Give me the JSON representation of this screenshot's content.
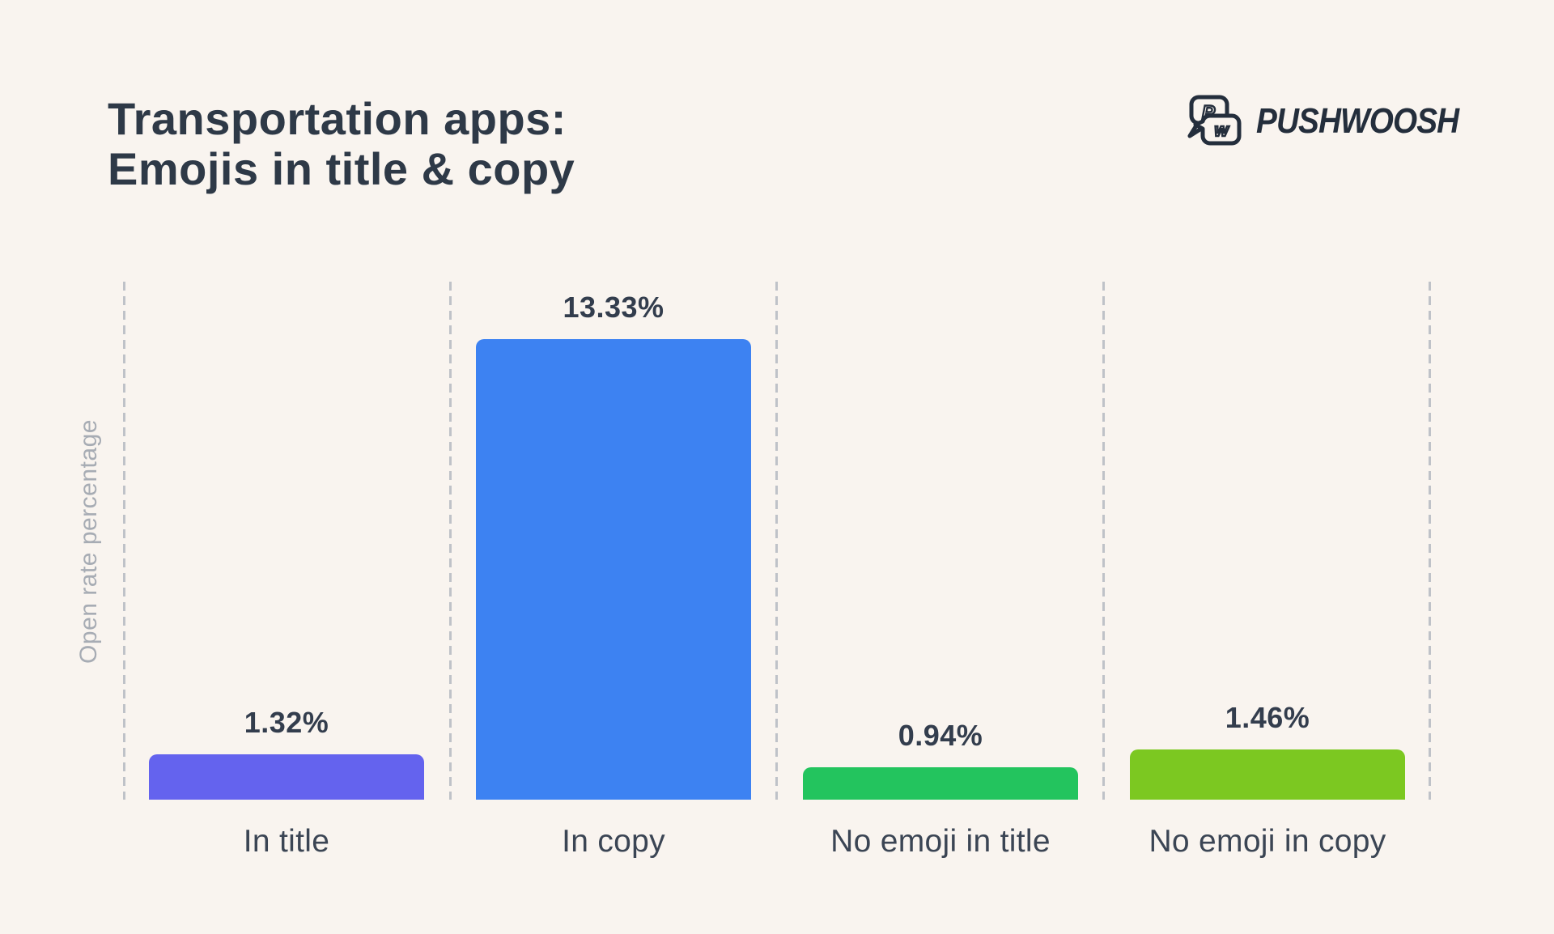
{
  "header": {
    "title_line1": "Transportation apps:",
    "title_line2": "Emojis in title & copy",
    "brand_name": "PUSHWOOSH",
    "logo_letter_p": "P",
    "logo_letter_w": "w"
  },
  "chart_data": {
    "type": "bar",
    "title": "Transportation apps: Emojis in title & copy",
    "ylabel": "Open rate percentage",
    "xlabel": "",
    "ylim": [
      0,
      15
    ],
    "grid": "dashed vertical separators between categories, no horizontal axis line",
    "legend": "none",
    "categories": [
      "In title",
      "In copy",
      "No emoji in title",
      "No emoji in copy"
    ],
    "values": [
      1.32,
      13.33,
      0.94,
      1.46
    ],
    "value_labels": [
      "1.32%",
      "13.33%",
      "0.94%",
      "1.46%"
    ],
    "bar_colors": [
      "#6463ee",
      "#3d82f2",
      "#23c45e",
      "#7cc821"
    ]
  },
  "colors": {
    "background": "#f9f4ef",
    "title_text": "#2e3947",
    "value_text": "#333d4d",
    "category_text": "#3b4554",
    "axis_label_text": "#a7acb4",
    "gridline": "#bfc2c8",
    "logo": "#242e3c"
  }
}
